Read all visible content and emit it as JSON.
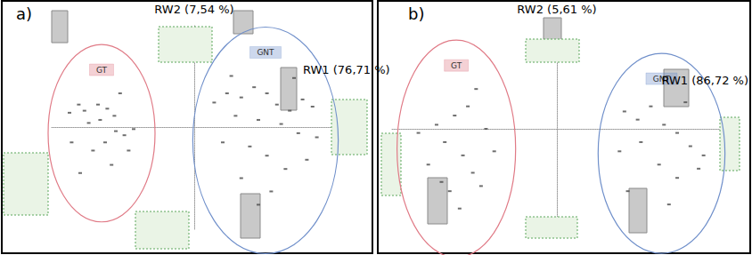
{
  "chart_data": [
    {
      "type": "scatter",
      "title": "a)",
      "x_label": "RW1 (76,71 %)",
      "y_label": "RW2 (7,54 %)",
      "xlim": [
        -1,
        1
      ],
      "ylim": [
        -1,
        1
      ],
      "tick_labels": false,
      "grid": false,
      "series": [
        {
          "name": "GT",
          "color": "#e07a86",
          "x": [
            -0.875,
            -0.81,
            -0.77,
            -0.675,
            -0.61,
            -0.56,
            -0.66,
            -0.74,
            -0.55,
            -0.49,
            -0.425,
            -0.625,
            -0.71,
            -0.58,
            -0.8,
            -0.52,
            -0.86,
            -0.46
          ],
          "values": [
            0.14,
            0.22,
            0.16,
            0.22,
            0.18,
            0.11,
            0.07,
            0.04,
            -0.04,
            -0.08,
            -0.02,
            -0.15,
            -0.23,
            -0.37,
            -0.45,
            0.33,
            -0.15,
            -0.23
          ]
        },
        {
          "name": "GNT",
          "color": "#6f8fca",
          "x": [
            0.14,
            0.23,
            0.33,
            0.42,
            0.51,
            0.58,
            0.67,
            0.76,
            0.83,
            0.29,
            0.45,
            0.61,
            0.73,
            0.86,
            0.2,
            0.39,
            0.51,
            0.64,
            0.79,
            0.33,
            0.54,
            0.26,
            0.7,
            0.45
          ],
          "values": [
            0.24,
            0.33,
            0.29,
            0.39,
            0.33,
            0.22,
            0.16,
            0.27,
            0.2,
            0.11,
            0.07,
            0.03,
            -0.06,
            -0.1,
            -0.15,
            -0.19,
            -0.28,
            -0.41,
            -0.32,
            -0.5,
            -0.63,
            0.5,
            0.48,
            -0.76
          ]
        }
      ]
    },
    {
      "type": "scatter",
      "title": "b)",
      "x_label": "RW1 (86,72 %)",
      "y_label": "RW2 (5,61 %)",
      "xlim": [
        -1,
        1
      ],
      "ylim": [
        -1,
        1
      ],
      "tick_labels": false,
      "grid": false,
      "series": [
        {
          "name": "GT",
          "color": "#e07a86",
          "x": [
            -0.84,
            -0.73,
            -0.68,
            -0.62,
            -0.57,
            -0.51,
            -0.46,
            -0.65,
            -0.59,
            -0.78,
            -0.43,
            -0.38,
            -0.54,
            -0.49,
            -0.7
          ],
          "values": [
            -0.04,
            0.04,
            -0.13,
            0.13,
            -0.26,
            -0.43,
            -0.56,
            -0.61,
            -0.78,
            -0.35,
            0,
            -0.22,
            0.22,
            0.39,
            -0.52
          ]
        },
        {
          "name": "GNT",
          "color": "#6f8fca",
          "x": [
            0.41,
            0.49,
            0.57,
            0.65,
            0.73,
            0.81,
            0.89,
            0.51,
            0.62,
            0.73,
            0.86,
            0.43,
            0.68,
            0.78,
            0.38
          ],
          "values": [
            0.17,
            0.09,
            0.22,
            0.04,
            -0.04,
            -0.17,
            -0.26,
            -0.13,
            -0.35,
            -0.48,
            -0.39,
            -0.61,
            -0.74,
            0.26,
            -0.22
          ]
        }
      ]
    }
  ]
}
